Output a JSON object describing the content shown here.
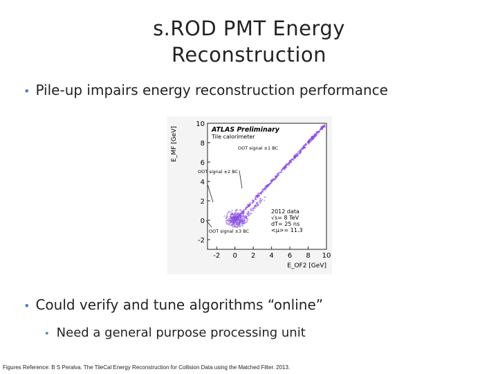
{
  "slide": {
    "title_line1": "s.ROD PMT Energy",
    "title_line2": "Reconstruction",
    "bullet1": "Pile-up impairs energy reconstruction performance",
    "bullet2": "Could verify and tune algorithms “online”",
    "sub_bullet1": "Need a general purpose processing unit",
    "footer": "Figures Reference: B S Peralva. The TileCal Energy Reconstruction for Collision Data using the Matched Filter. 2013.",
    "bullet_color": "#4f81bd"
  },
  "chart_data": {
    "type": "scatter",
    "title": "ATLAS Preliminary",
    "subtitle": "Tile calorimeter",
    "xlabel": "E_OF2 [GeV]",
    "ylabel": "E_MF [GeV]",
    "xlim": [
      -3,
      10
    ],
    "ylim": [
      -3,
      10
    ],
    "xticks": [
      "-2",
      "0",
      "2",
      "4",
      "6",
      "8",
      "10"
    ],
    "yticks": [
      "-2",
      "0",
      "2",
      "4",
      "6",
      "8",
      "10"
    ],
    "point_color": "#8a4fe0",
    "annotations": [
      "OOT signal ±1 BC",
      "OOT signal ±2 BC",
      "OOT signal ±3 BC"
    ],
    "info_text": [
      "2012 data",
      "√s= 8 TeV",
      "dT= 25 ns",
      "<μ>= 11.3"
    ],
    "series": [
      {
        "x": [
          0.5,
          1.5,
          2.5,
          3.5,
          4.5,
          5.5,
          6.5,
          7.5,
          8.5,
          9.5
        ],
        "y": [
          0.5,
          1.5,
          2.5,
          3.5,
          4.5,
          5.5,
          6.5,
          7.5,
          8.5,
          9.5
        ]
      }
    ]
  }
}
